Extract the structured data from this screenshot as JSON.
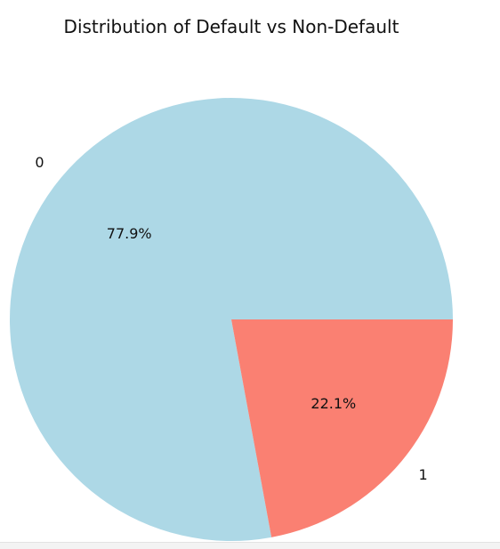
{
  "chart_data": {
    "type": "pie",
    "title": "Distribution of Default vs Non-Default",
    "labels": [
      "0",
      "1"
    ],
    "values": [
      77.9,
      22.1
    ],
    "autopct": [
      "77.9%",
      "22.1%"
    ],
    "colors": [
      "#add8e6",
      "#fa8072"
    ],
    "start_angle_deg": 0,
    "direction": "counterclockwise",
    "legend": "none"
  }
}
